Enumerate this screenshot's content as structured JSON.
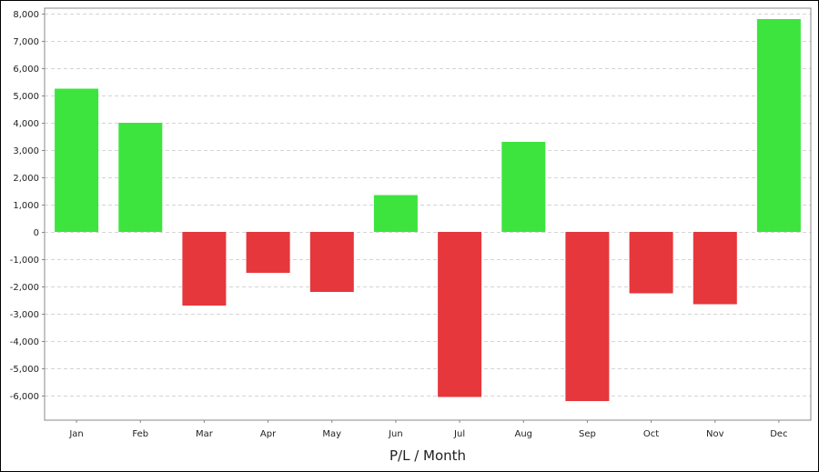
{
  "chart_data": {
    "type": "bar",
    "title": "",
    "xlabel": "P/L / Month",
    "ylabel": "",
    "categories": [
      "Jan",
      "Feb",
      "Mar",
      "Apr",
      "May",
      "Jun",
      "Jul",
      "Aug",
      "Sep",
      "Oct",
      "Nov",
      "Dec"
    ],
    "values": [
      5250,
      4000,
      -2700,
      -1500,
      -2200,
      1350,
      -6050,
      3300,
      -6200,
      -2250,
      -2650,
      7800
    ],
    "ylim": [
      -6900,
      8200
    ],
    "yticks": [
      8000,
      7000,
      6000,
      5000,
      4000,
      3000,
      2000,
      1000,
      0,
      -1000,
      -2000,
      -3000,
      -4000,
      -5000,
      -6000
    ],
    "ytick_labels": [
      "8,000",
      "7,000",
      "6,000",
      "5,000",
      "4,000",
      "3,000",
      "2,000",
      "1,000",
      "0",
      "-1,000",
      "-2,000",
      "-3,000",
      "-4,000",
      "-5,000",
      "-6,000"
    ],
    "grid": true,
    "colors": {
      "positive": "#3de43d",
      "negative": "#e6373c",
      "grid": "#d4d4d4",
      "axis": "#888888"
    }
  }
}
